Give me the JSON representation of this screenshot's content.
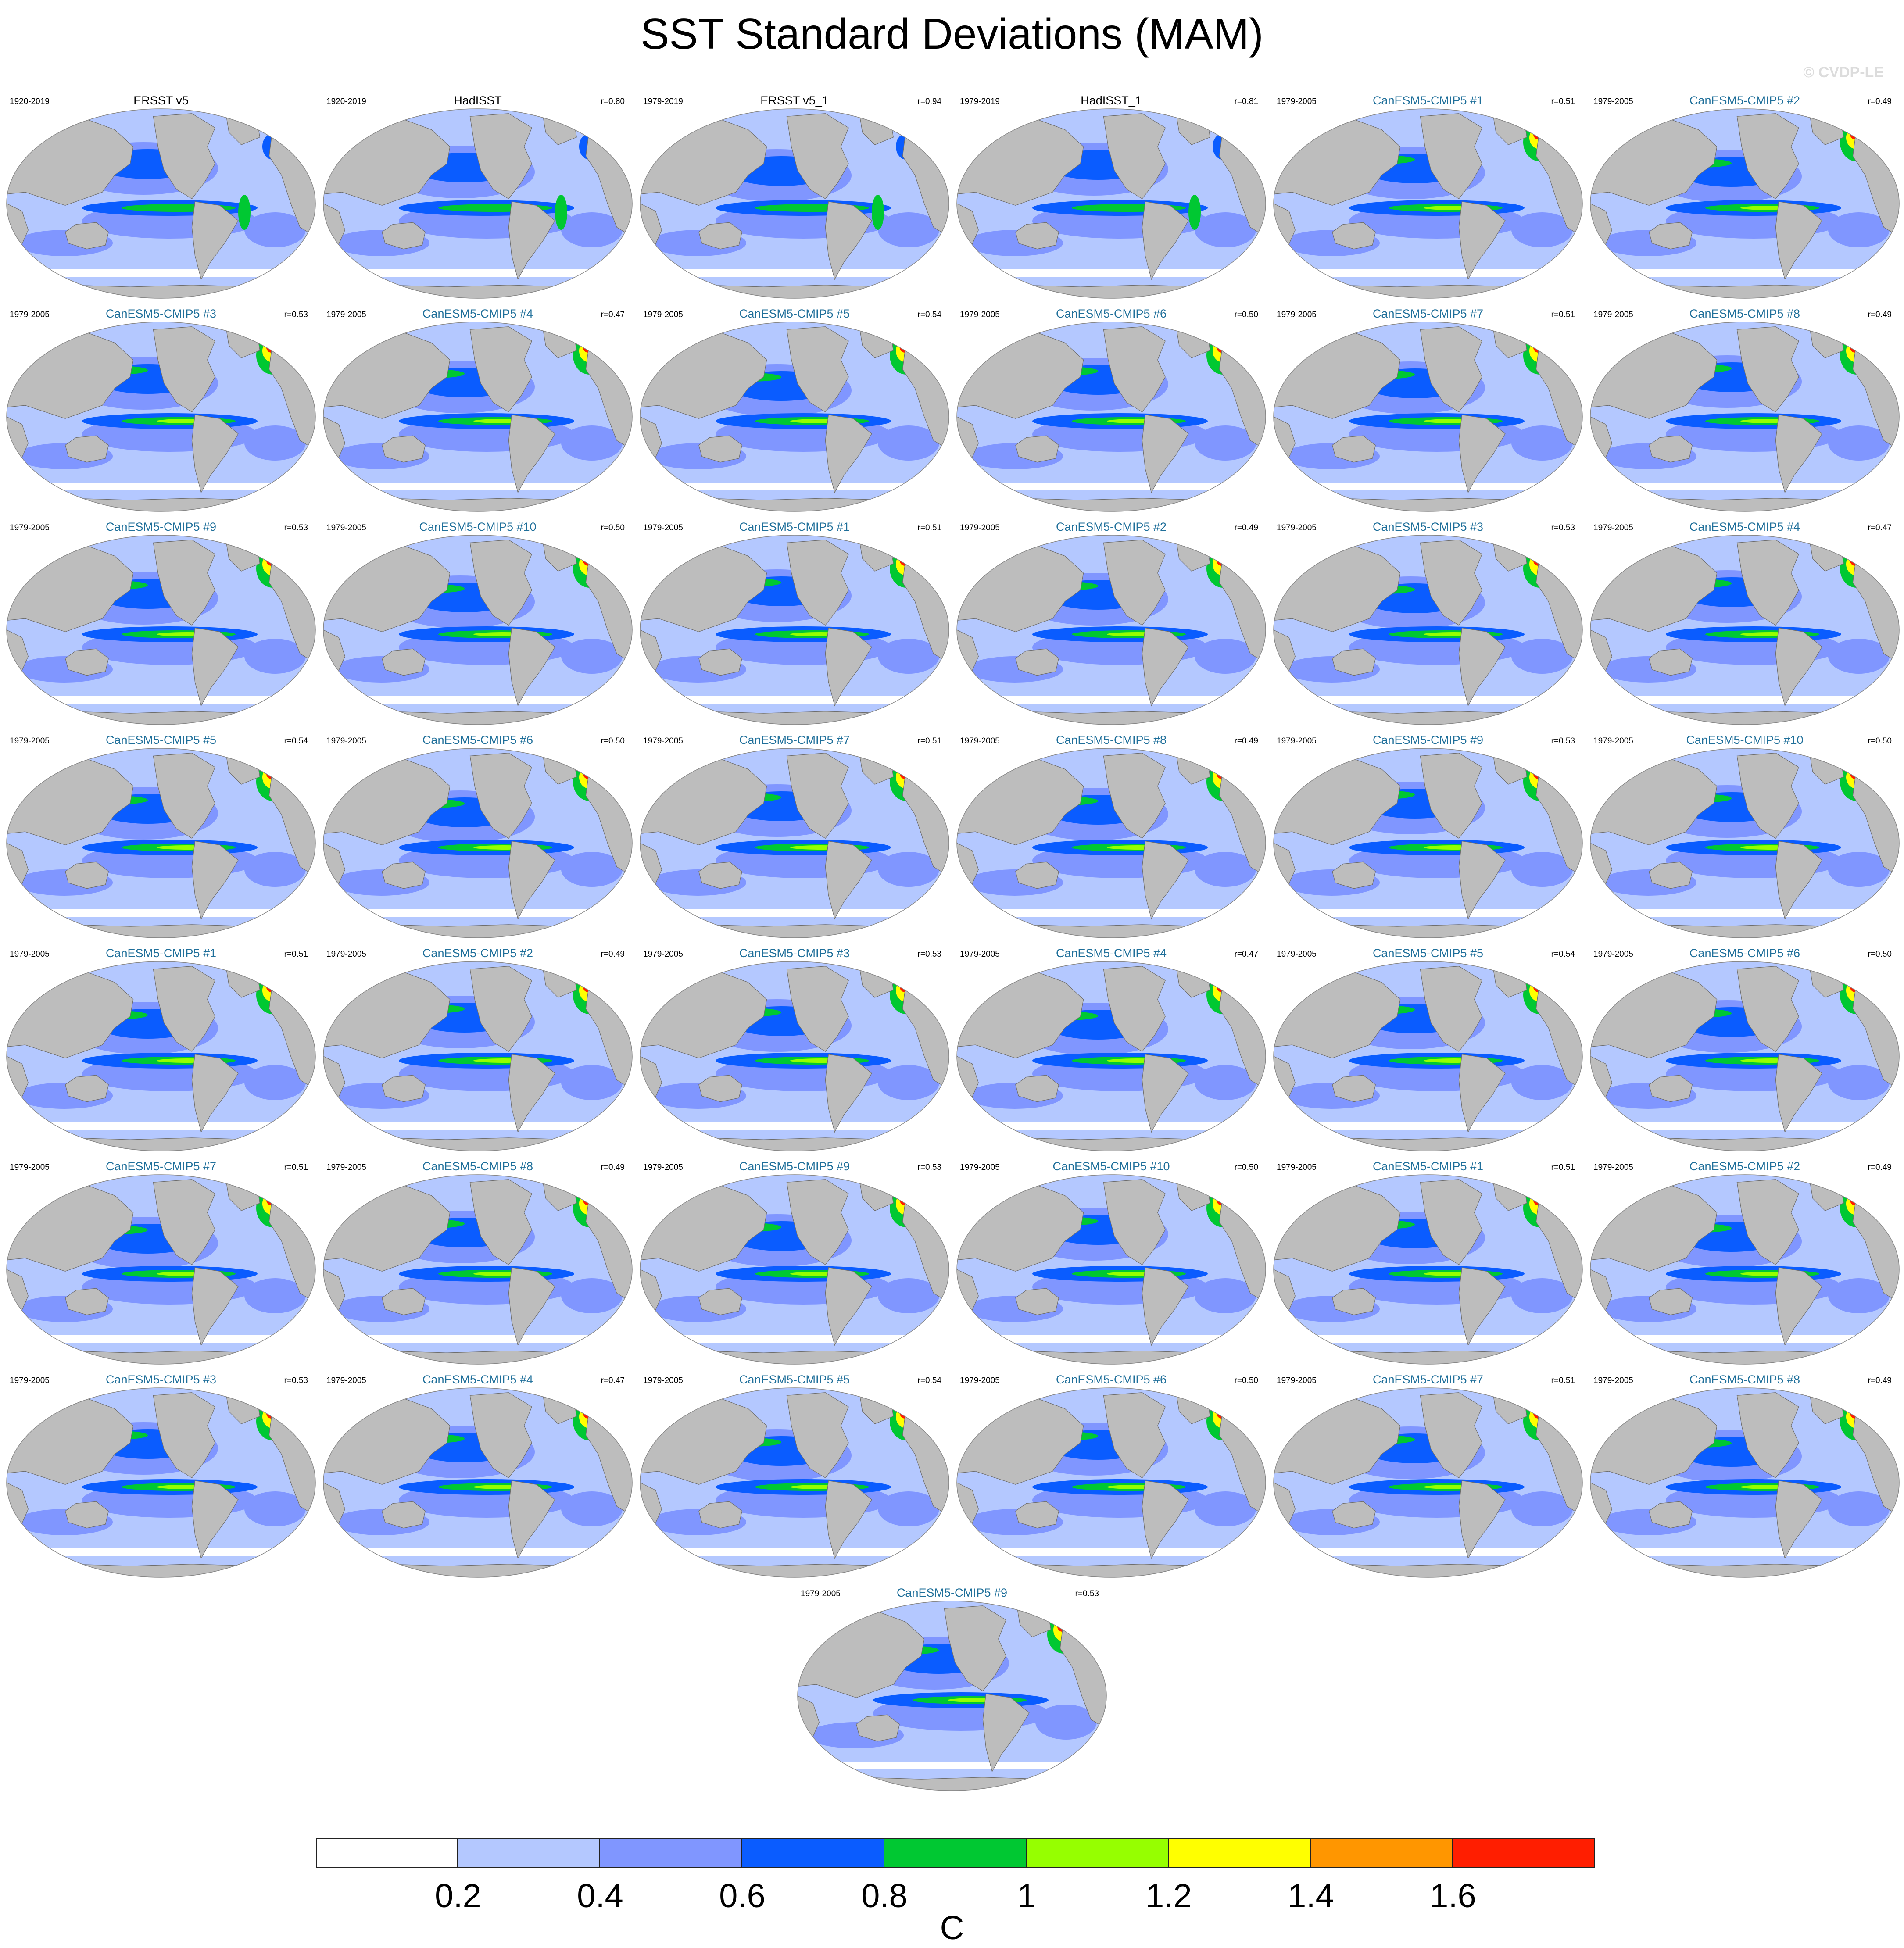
{
  "title": "SST Standard Deviations (MAM)",
  "watermark": "© CVDP-LE",
  "units": "C",
  "chart_data": {
    "type": "heatmap",
    "title": "SST Standard Deviations (MAM)",
    "colorbar": {
      "levels": [
        0.2,
        0.4,
        0.6,
        0.8,
        1,
        1.2,
        1.4,
        1.6
      ],
      "labels": [
        "0.2",
        "0.4",
        "0.6",
        "0.8",
        "1",
        "1.2",
        "1.4",
        "1.6"
      ],
      "colors": [
        "#ffffff",
        "#b4c8ff",
        "#8096ff",
        "#0a5cff",
        "#00c832",
        "#96ff00",
        "#ffff00",
        "#ff9600",
        "#ff1e00"
      ],
      "units": "C"
    },
    "panels": [
      {
        "title": "ERSST v5",
        "period": "1920-2019",
        "r": "",
        "kind": "obs"
      },
      {
        "title": "HadISST",
        "period": "1920-2019",
        "r": "r=0.80",
        "kind": "obs"
      },
      {
        "title": "ERSST v5_1",
        "period": "1979-2019",
        "r": "r=0.94",
        "kind": "obs"
      },
      {
        "title": "HadISST_1",
        "period": "1979-2019",
        "r": "r=0.81",
        "kind": "obs"
      },
      {
        "title": "CanESM5-CMIP5 #1",
        "period": "1979-2005",
        "r": "r=0.51",
        "kind": "model"
      },
      {
        "title": "CanESM5-CMIP5 #2",
        "period": "1979-2005",
        "r": "r=0.49",
        "kind": "model"
      },
      {
        "title": "CanESM5-CMIP5 #3",
        "period": "1979-2005",
        "r": "r=0.53",
        "kind": "model"
      },
      {
        "title": "CanESM5-CMIP5 #4",
        "period": "1979-2005",
        "r": "r=0.47",
        "kind": "model"
      },
      {
        "title": "CanESM5-CMIP5 #5",
        "period": "1979-2005",
        "r": "r=0.54",
        "kind": "model"
      },
      {
        "title": "CanESM5-CMIP5 #6",
        "period": "1979-2005",
        "r": "r=0.50",
        "kind": "model"
      },
      {
        "title": "CanESM5-CMIP5 #7",
        "period": "1979-2005",
        "r": "r=0.51",
        "kind": "model"
      },
      {
        "title": "CanESM5-CMIP5 #8",
        "period": "1979-2005",
        "r": "r=0.49",
        "kind": "model"
      },
      {
        "title": "CanESM5-CMIP5 #9",
        "period": "1979-2005",
        "r": "r=0.53",
        "kind": "model"
      },
      {
        "title": "CanESM5-CMIP5 #10",
        "period": "1979-2005",
        "r": "r=0.50",
        "kind": "model"
      },
      {
        "title": "CanESM5-CMIP5 #1",
        "period": "1979-2005",
        "r": "r=0.51",
        "kind": "model"
      },
      {
        "title": "CanESM5-CMIP5 #2",
        "period": "1979-2005",
        "r": "r=0.49",
        "kind": "model"
      },
      {
        "title": "CanESM5-CMIP5 #3",
        "period": "1979-2005",
        "r": "r=0.53",
        "kind": "model"
      },
      {
        "title": "CanESM5-CMIP5 #4",
        "period": "1979-2005",
        "r": "r=0.47",
        "kind": "model"
      },
      {
        "title": "CanESM5-CMIP5 #5",
        "period": "1979-2005",
        "r": "r=0.54",
        "kind": "model"
      },
      {
        "title": "CanESM5-CMIP5 #6",
        "period": "1979-2005",
        "r": "r=0.50",
        "kind": "model"
      },
      {
        "title": "CanESM5-CMIP5 #7",
        "period": "1979-2005",
        "r": "r=0.51",
        "kind": "model"
      },
      {
        "title": "CanESM5-CMIP5 #8",
        "period": "1979-2005",
        "r": "r=0.49",
        "kind": "model"
      },
      {
        "title": "CanESM5-CMIP5 #9",
        "period": "1979-2005",
        "r": "r=0.53",
        "kind": "model"
      },
      {
        "title": "CanESM5-CMIP5 #10",
        "period": "1979-2005",
        "r": "r=0.50",
        "kind": "model"
      },
      {
        "title": "CanESM5-CMIP5 #1",
        "period": "1979-2005",
        "r": "r=0.51",
        "kind": "model"
      },
      {
        "title": "CanESM5-CMIP5 #2",
        "period": "1979-2005",
        "r": "r=0.49",
        "kind": "model"
      },
      {
        "title": "CanESM5-CMIP5 #3",
        "period": "1979-2005",
        "r": "r=0.53",
        "kind": "model"
      },
      {
        "title": "CanESM5-CMIP5 #4",
        "period": "1979-2005",
        "r": "r=0.47",
        "kind": "model"
      },
      {
        "title": "CanESM5-CMIP5 #5",
        "period": "1979-2005",
        "r": "r=0.54",
        "kind": "model"
      },
      {
        "title": "CanESM5-CMIP5 #6",
        "period": "1979-2005",
        "r": "r=0.50",
        "kind": "model"
      },
      {
        "title": "CanESM5-CMIP5 #7",
        "period": "1979-2005",
        "r": "r=0.51",
        "kind": "model"
      },
      {
        "title": "CanESM5-CMIP5 #8",
        "period": "1979-2005",
        "r": "r=0.49",
        "kind": "model"
      },
      {
        "title": "CanESM5-CMIP5 #9",
        "period": "1979-2005",
        "r": "r=0.53",
        "kind": "model"
      },
      {
        "title": "CanESM5-CMIP5 #10",
        "period": "1979-2005",
        "r": "r=0.50",
        "kind": "model"
      },
      {
        "title": "CanESM5-CMIP5 #1",
        "period": "1979-2005",
        "r": "r=0.51",
        "kind": "model"
      },
      {
        "title": "CanESM5-CMIP5 #2",
        "period": "1979-2005",
        "r": "r=0.49",
        "kind": "model"
      },
      {
        "title": "CanESM5-CMIP5 #3",
        "period": "1979-2005",
        "r": "r=0.53",
        "kind": "model"
      },
      {
        "title": "CanESM5-CMIP5 #4",
        "period": "1979-2005",
        "r": "r=0.47",
        "kind": "model"
      },
      {
        "title": "CanESM5-CMIP5 #5",
        "period": "1979-2005",
        "r": "r=0.54",
        "kind": "model"
      },
      {
        "title": "CanESM5-CMIP5 #6",
        "period": "1979-2005",
        "r": "r=0.50",
        "kind": "model"
      },
      {
        "title": "CanESM5-CMIP5 #7",
        "period": "1979-2005",
        "r": "r=0.51",
        "kind": "model"
      },
      {
        "title": "CanESM5-CMIP5 #8",
        "period": "1979-2005",
        "r": "r=0.49",
        "kind": "model"
      },
      {
        "title": "CanESM5-CMIP5 #9",
        "period": "1979-2005",
        "r": "r=0.53",
        "kind": "model"
      }
    ]
  }
}
